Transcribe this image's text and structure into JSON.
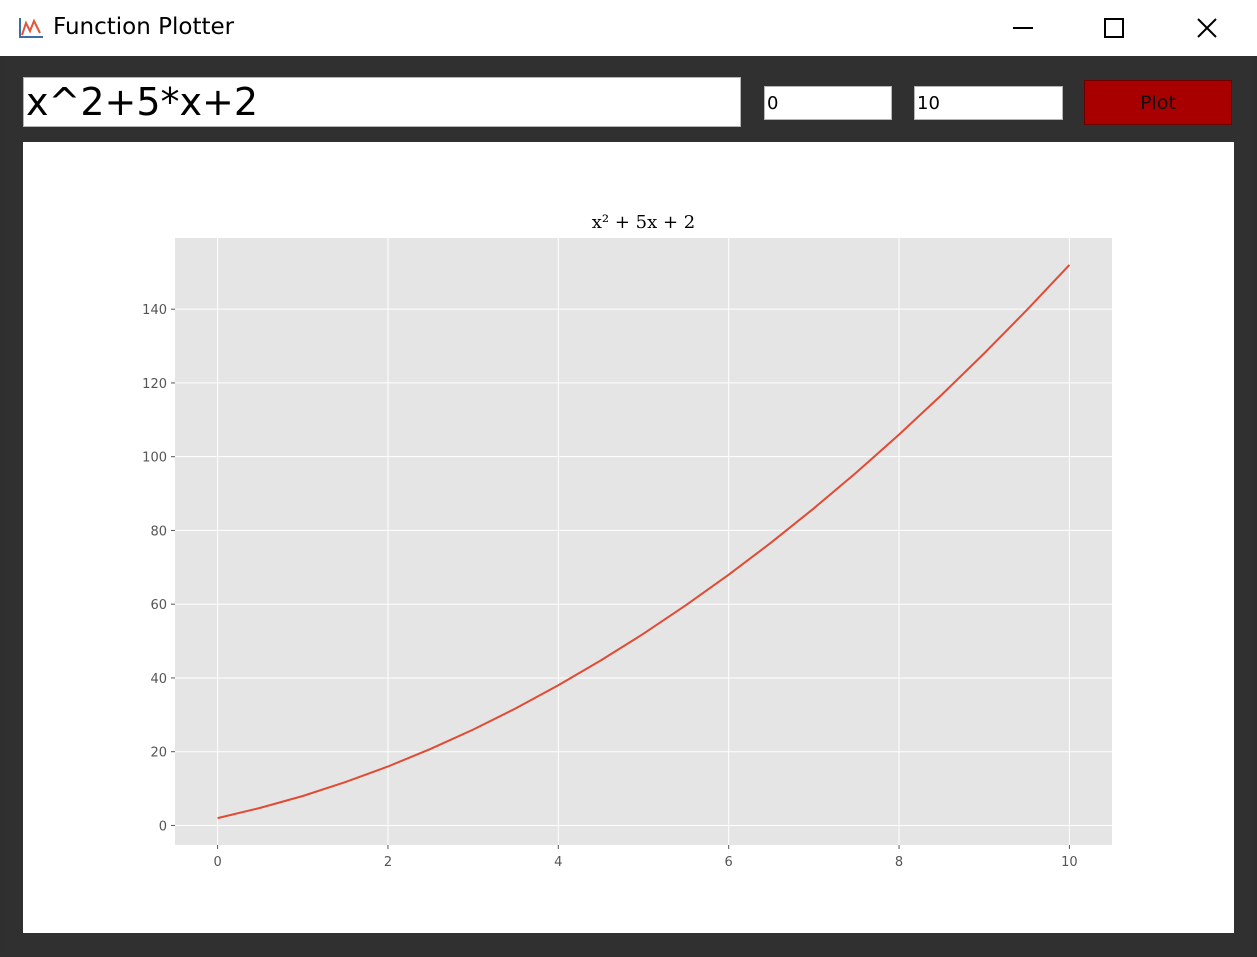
{
  "window": {
    "title": "Function Plotter",
    "icon": "chart-line-icon"
  },
  "controls": {
    "expression": "x^2+5*x+2",
    "x_min": "0",
    "x_max": "10",
    "plot_label": "Plot",
    "plot_color": "#a80000"
  },
  "chart_data": {
    "type": "line",
    "title": "x² + 5x + 2",
    "xlabel": "",
    "ylabel": "",
    "xlim": [
      -0.5,
      10.5
    ],
    "ylim": [
      -5.3,
      159.3
    ],
    "xticks": [
      0,
      2,
      4,
      6,
      8,
      10
    ],
    "yticks": [
      0,
      20,
      40,
      60,
      80,
      100,
      120,
      140
    ],
    "grid": true,
    "series": [
      {
        "color": "#e24a33",
        "x": [
          0,
          0.5,
          1,
          1.5,
          2,
          2.5,
          3,
          3.5,
          4,
          4.5,
          5,
          5.5,
          6,
          6.5,
          7,
          7.5,
          8,
          8.5,
          9,
          9.5,
          10
        ],
        "y": [
          2,
          4.75,
          8,
          11.75,
          16,
          20.75,
          26,
          31.75,
          38,
          44.75,
          52,
          59.75,
          68,
          76.75,
          86,
          95.75,
          106,
          116.75,
          128,
          139.75,
          152
        ]
      }
    ]
  }
}
